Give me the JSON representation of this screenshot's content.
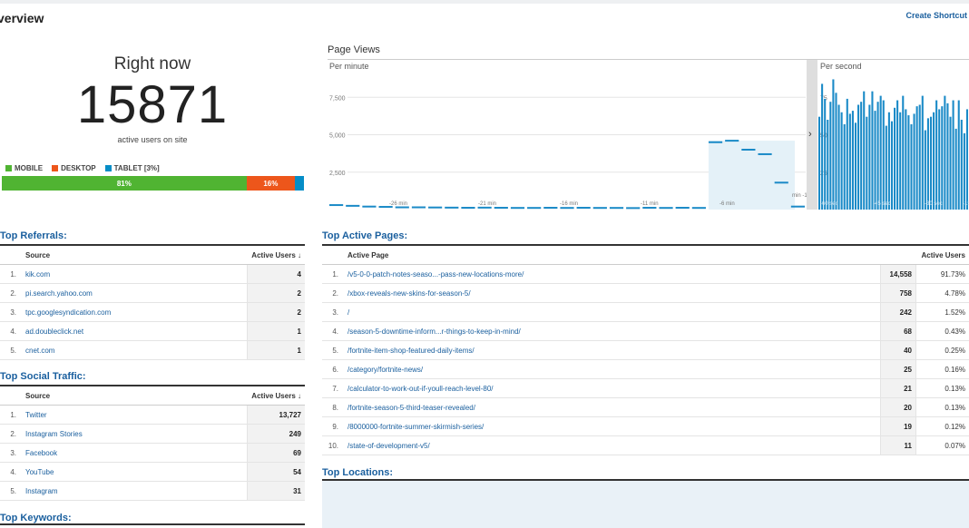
{
  "header": {
    "title": "verview",
    "shortcut": "Create Shortcut"
  },
  "right_now": {
    "label": "Right now",
    "count": "15871",
    "sub": "active users on site",
    "legend": [
      {
        "label": "MOBILE",
        "color": "#50b432"
      },
      {
        "label": "DESKTOP",
        "color": "#ed561b"
      },
      {
        "label": "TABLET [3%]",
        "color": "#058dc7"
      }
    ],
    "bar": [
      {
        "label": "81%",
        "pct": 81,
        "color": "#50b432"
      },
      {
        "label": "16%",
        "pct": 16,
        "color": "#ed561b"
      },
      {
        "label": "",
        "pct": 3,
        "color": "#058dc7"
      }
    ]
  },
  "page_views": {
    "title": "Page Views",
    "per_minute": "Per minute",
    "per_second": "Per second",
    "y_ticks": [
      "7,500",
      "5,000",
      "2,500"
    ],
    "x_labels": [
      "-26 min",
      "-21 min",
      "-16 min",
      "-11 min",
      "-6 min",
      "min -1"
    ],
    "minute_values": [
      300,
      250,
      200,
      180,
      150,
      150,
      140,
      130,
      120,
      130,
      120,
      110,
      110,
      120,
      110,
      120,
      110,
      110,
      100,
      120,
      110,
      120,
      110,
      4500,
      4600,
      4000,
      3700,
      1800,
      200
    ],
    "sec_ticks": [
      "75",
      "50",
      "25"
    ],
    "sec_labels": [
      "-60 sec",
      "-45 sec",
      "-30 sec",
      "-15 sec"
    ],
    "second_values": [
      62,
      84,
      74,
      60,
      72,
      87,
      78,
      70,
      65,
      57,
      74,
      64,
      66,
      58,
      70,
      72,
      79,
      62,
      70,
      79,
      66,
      72,
      76,
      73,
      56,
      65,
      59,
      68,
      73,
      65,
      76,
      67,
      63,
      57,
      64,
      69,
      70,
      76,
      53,
      61,
      62,
      65,
      73,
      67,
      69,
      76,
      71,
      62,
      73,
      54,
      73,
      60,
      51,
      67
    ]
  },
  "referrals": {
    "title": "Top Referrals:",
    "col_source": "Source",
    "col_users": "Active Users ↓",
    "rows": [
      {
        "idx": "1.",
        "source": "kik.com",
        "users": "4"
      },
      {
        "idx": "2.",
        "source": "pi.search.yahoo.com",
        "users": "2"
      },
      {
        "idx": "3.",
        "source": "tpc.googlesyndication.com",
        "users": "2"
      },
      {
        "idx": "4.",
        "source": "ad.doubleclick.net",
        "users": "1"
      },
      {
        "idx": "5.",
        "source": "cnet.com",
        "users": "1"
      }
    ]
  },
  "social": {
    "title": "Top Social Traffic:",
    "col_source": "Source",
    "col_users": "Active Users ↓",
    "rows": [
      {
        "idx": "1.",
        "source": "Twitter",
        "users": "13,727"
      },
      {
        "idx": "2.",
        "source": "Instagram Stories",
        "users": "249"
      },
      {
        "idx": "3.",
        "source": "Facebook",
        "users": "69"
      },
      {
        "idx": "4.",
        "source": "YouTube",
        "users": "54"
      },
      {
        "idx": "5.",
        "source": "Instagram",
        "users": "31"
      }
    ]
  },
  "keywords": {
    "title": "Top Keywords:"
  },
  "active_pages": {
    "title": "Top Active Pages:",
    "col_page": "Active Page",
    "col_users": "Active Users",
    "rows": [
      {
        "idx": "1.",
        "page": "/v5-0-0-patch-notes-seaso...-pass-new-locations-more/",
        "users": "14,558",
        "pct": "91.73%"
      },
      {
        "idx": "2.",
        "page": "/xbox-reveals-new-skins-for-season-5/",
        "users": "758",
        "pct": "4.78%"
      },
      {
        "idx": "3.",
        "page": "/",
        "users": "242",
        "pct": "1.52%"
      },
      {
        "idx": "4.",
        "page": "/season-5-downtime-inform...r-things-to-keep-in-mind/",
        "users": "68",
        "pct": "0.43%"
      },
      {
        "idx": "5.",
        "page": "/fortnite-item-shop-featured-daily-items/",
        "users": "40",
        "pct": "0.25%"
      },
      {
        "idx": "6.",
        "page": "/category/fortnite-news/",
        "users": "25",
        "pct": "0.16%"
      },
      {
        "idx": "7.",
        "page": "/calculator-to-work-out-if-youll-reach-level-80/",
        "users": "21",
        "pct": "0.13%"
      },
      {
        "idx": "8.",
        "page": "/fortnite-season-5-third-teaser-revealed/",
        "users": "20",
        "pct": "0.13%"
      },
      {
        "idx": "9.",
        "page": "/8000000-fortnite-summer-skirmish-series/",
        "users": "19",
        "pct": "0.12%"
      },
      {
        "idx": "10.",
        "page": "/state-of-development-v5/",
        "users": "11",
        "pct": "0.07%"
      }
    ]
  },
  "locations": {
    "title": "Top Locations:"
  }
}
